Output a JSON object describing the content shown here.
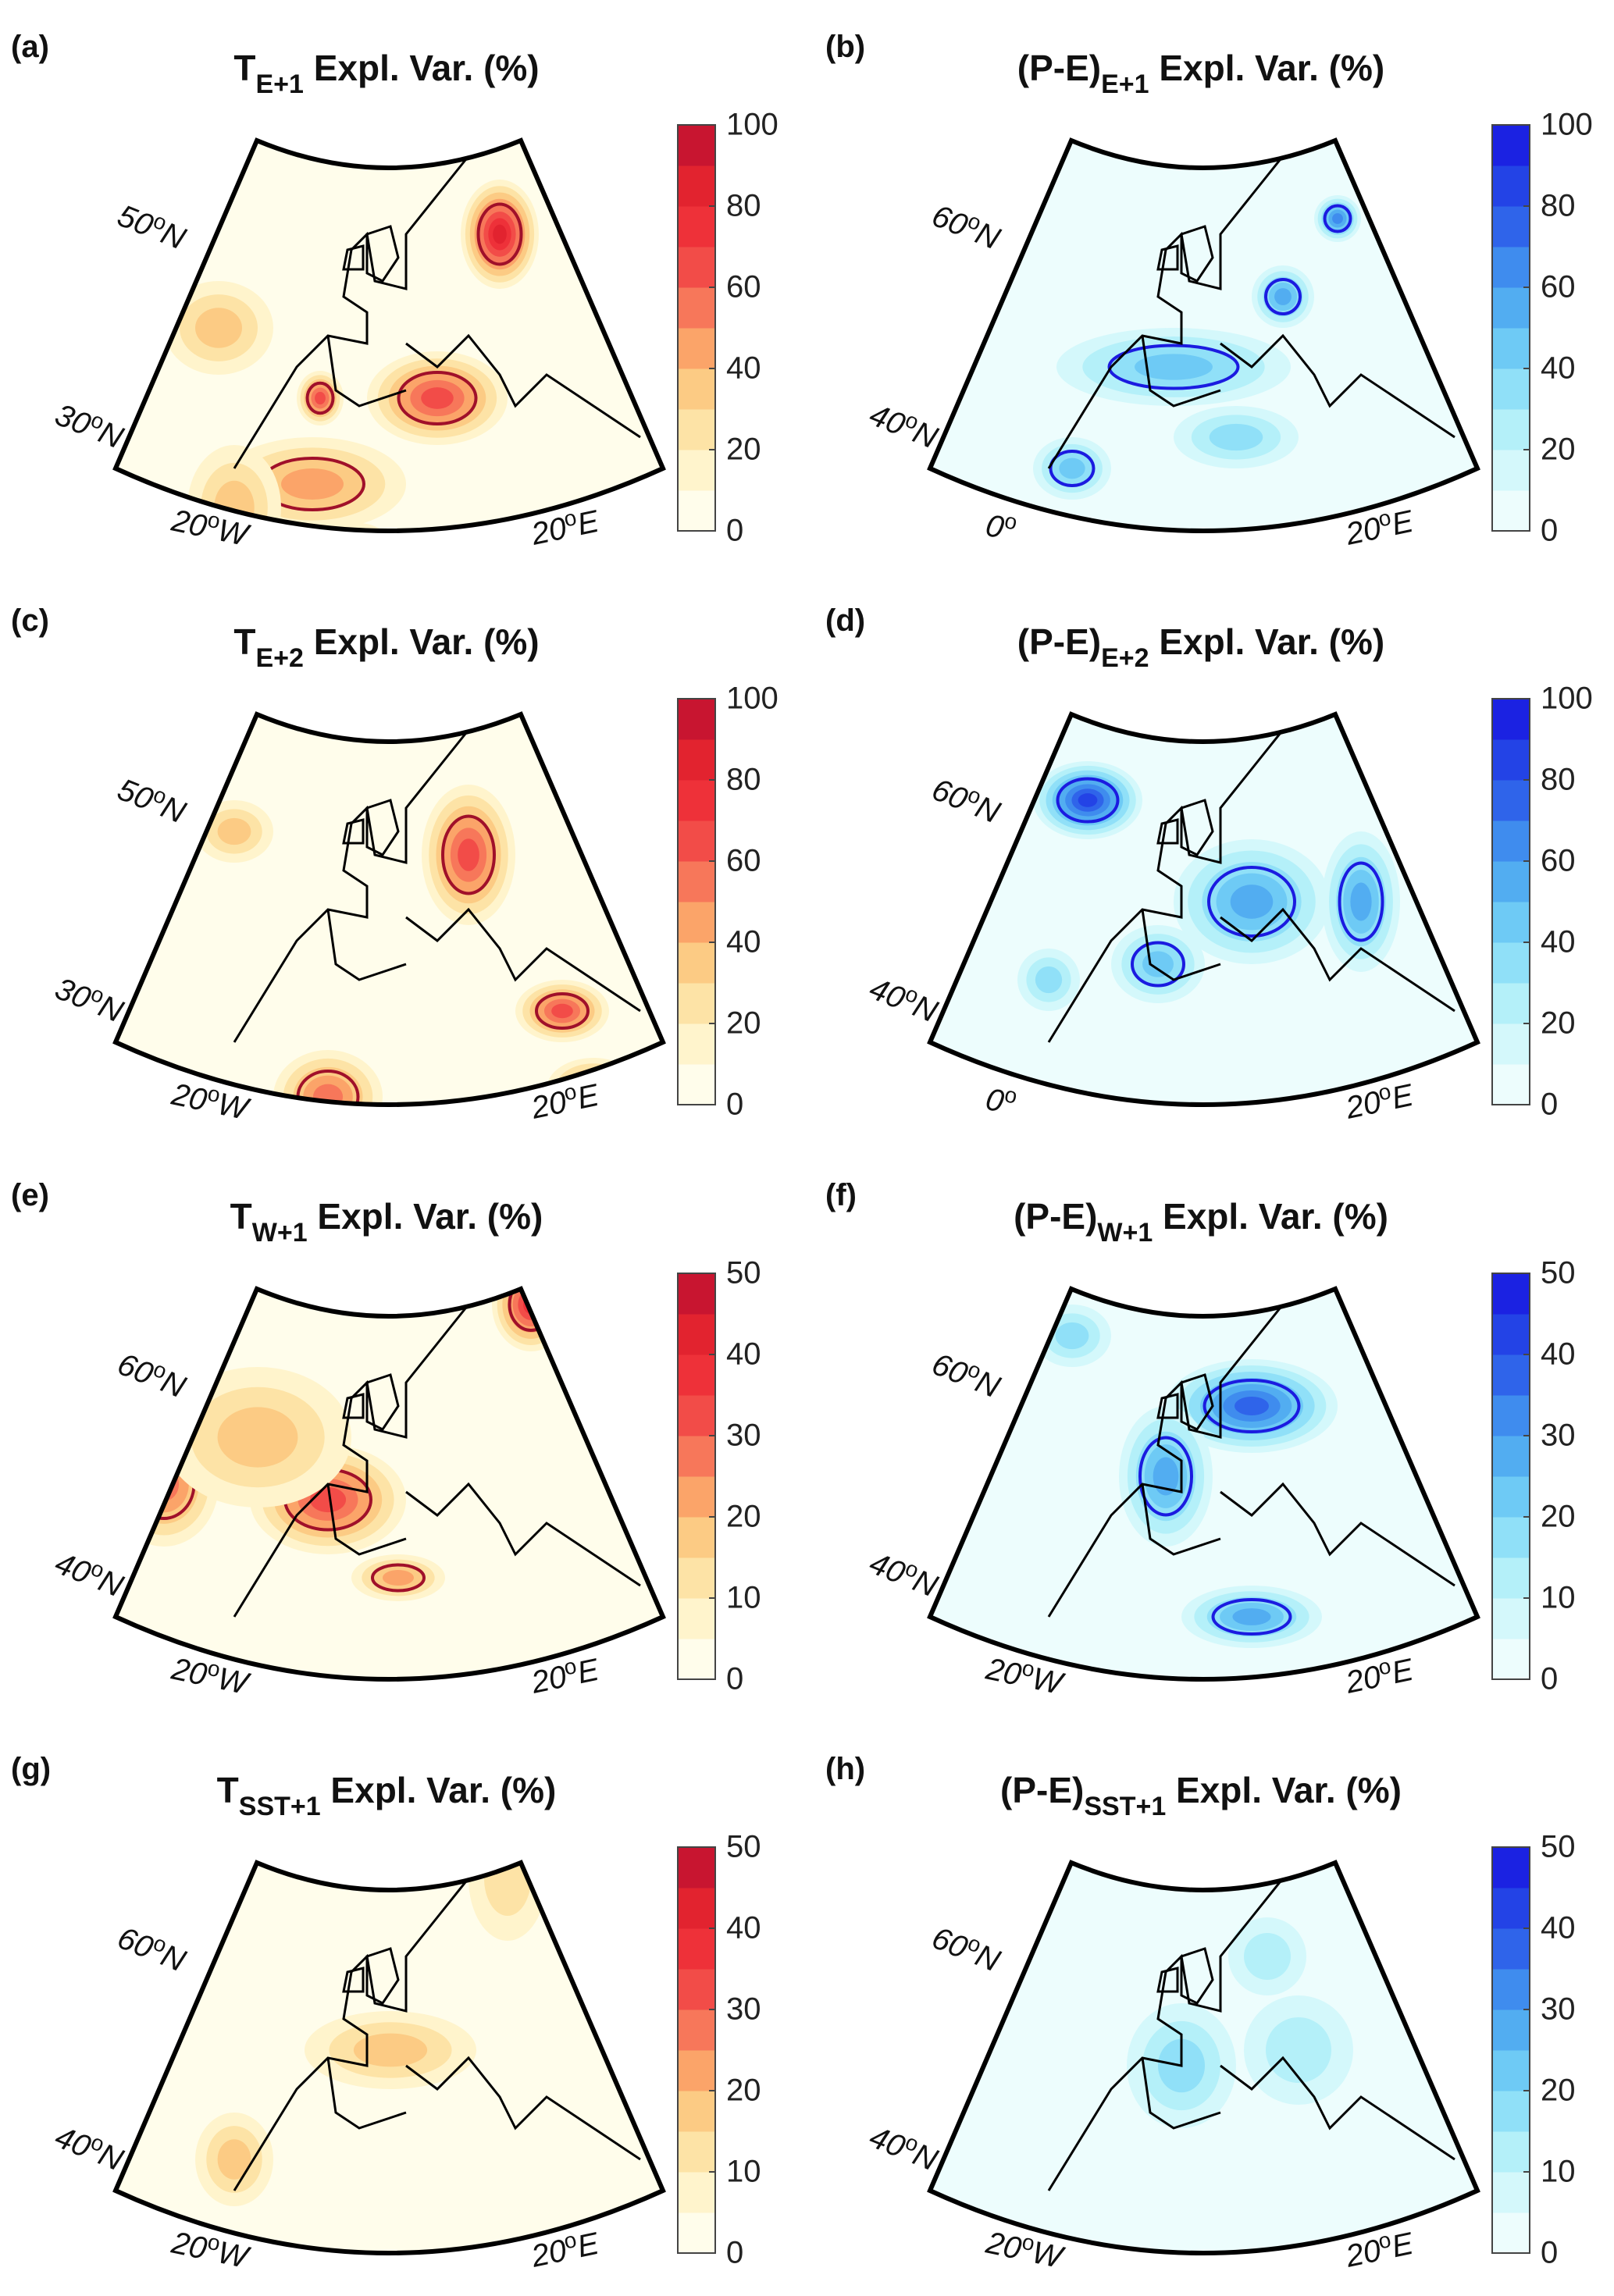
{
  "chart_data": [
    {
      "id": "a",
      "label": "(a)",
      "type": "heatmap",
      "var": "T",
      "sub": "E+1",
      "title_rest": " Expl. Var. (%)",
      "palette": "red",
      "cbar_max": 100,
      "cbar_ticks": [
        "0",
        "20",
        "40",
        "60",
        "80",
        "100"
      ],
      "lat_labels": [
        "50",
        "30"
      ],
      "lon_labels": [
        "20",
        "20"
      ],
      "lat_suffix": "N",
      "lon_suffix": [
        "W",
        "E"
      ],
      "lat_values": [
        50,
        30
      ],
      "lon_values": [
        -20,
        20
      ]
    },
    {
      "id": "b",
      "label": "(b)",
      "type": "heatmap",
      "var": "(P-E)",
      "sub": "E+1",
      "title_rest": " Expl. Var. (%)",
      "palette": "blue",
      "cbar_max": 100,
      "cbar_ticks": [
        "0",
        "20",
        "40",
        "60",
        "80",
        "100"
      ],
      "lat_labels": [
        "60",
        "40"
      ],
      "lon_labels": [
        "0",
        "20"
      ],
      "lat_suffix": "N",
      "lon_suffix": [
        "",
        "E"
      ],
      "lat_values": [
        60,
        40
      ],
      "lon_values": [
        0,
        20
      ]
    },
    {
      "id": "c",
      "label": "(c)",
      "type": "heatmap",
      "var": "T",
      "sub": "E+2",
      "title_rest": " Expl. Var. (%)",
      "palette": "red",
      "cbar_max": 100,
      "cbar_ticks": [
        "0",
        "20",
        "40",
        "60",
        "80",
        "100"
      ],
      "lat_labels": [
        "50",
        "30"
      ],
      "lon_labels": [
        "20",
        "20"
      ],
      "lat_suffix": "N",
      "lon_suffix": [
        "W",
        "E"
      ],
      "lat_values": [
        50,
        30
      ],
      "lon_values": [
        -20,
        20
      ]
    },
    {
      "id": "d",
      "label": "(d)",
      "type": "heatmap",
      "var": "(P-E)",
      "sub": "E+2",
      "title_rest": " Expl. Var. (%)",
      "palette": "blue",
      "cbar_max": 100,
      "cbar_ticks": [
        "0",
        "20",
        "40",
        "60",
        "80",
        "100"
      ],
      "lat_labels": [
        "60",
        "40"
      ],
      "lon_labels": [
        "0",
        "20"
      ],
      "lat_suffix": "N",
      "lon_suffix": [
        "",
        "E"
      ],
      "lat_values": [
        60,
        40
      ],
      "lon_values": [
        0,
        20
      ]
    },
    {
      "id": "e",
      "label": "(e)",
      "type": "heatmap",
      "var": "T",
      "sub": "W+1",
      "title_rest": " Expl. Var. (%)",
      "palette": "red",
      "cbar_max": 50,
      "cbar_ticks": [
        "0",
        "10",
        "20",
        "30",
        "40",
        "50"
      ],
      "lat_labels": [
        "60",
        "40"
      ],
      "lon_labels": [
        "20",
        "20"
      ],
      "lat_suffix": "N",
      "lon_suffix": [
        "W",
        "E"
      ],
      "lat_values": [
        60,
        40
      ],
      "lon_values": [
        -20,
        20
      ]
    },
    {
      "id": "f",
      "label": "(f)",
      "type": "heatmap",
      "var": "(P-E)",
      "sub": "W+1",
      "title_rest": " Expl. Var. (%)",
      "palette": "blue",
      "cbar_max": 50,
      "cbar_ticks": [
        "0",
        "10",
        "20",
        "30",
        "40",
        "50"
      ],
      "lat_labels": [
        "60",
        "40"
      ],
      "lon_labels": [
        "20",
        "20"
      ],
      "lat_suffix": "N",
      "lon_suffix": [
        "W",
        "E"
      ],
      "lat_values": [
        60,
        40
      ],
      "lon_values": [
        -20,
        20
      ]
    },
    {
      "id": "g",
      "label": "(g)",
      "type": "heatmap",
      "var": "T",
      "sub": "SST+1",
      "title_rest": " Expl. Var. (%)",
      "palette": "red",
      "cbar_max": 50,
      "cbar_ticks": [
        "0",
        "10",
        "20",
        "30",
        "40",
        "50"
      ],
      "lat_labels": [
        "60",
        "40"
      ],
      "lon_labels": [
        "20",
        "20"
      ],
      "lat_suffix": "N",
      "lon_suffix": [
        "W",
        "E"
      ],
      "lat_values": [
        60,
        40
      ],
      "lon_values": [
        -20,
        20
      ]
    },
    {
      "id": "h",
      "label": "(h)",
      "type": "heatmap",
      "var": "(P-E)",
      "sub": "SST+1",
      "title_rest": " Expl. Var. (%)",
      "palette": "blue",
      "cbar_max": 50,
      "cbar_ticks": [
        "0",
        "10",
        "20",
        "30",
        "40",
        "50"
      ],
      "lat_labels": [
        "60",
        "40"
      ],
      "lon_labels": [
        "20",
        "20"
      ],
      "lat_suffix": "N",
      "lon_suffix": [
        "W",
        "E"
      ],
      "lat_values": [
        60,
        40
      ],
      "lon_values": [
        -20,
        20
      ]
    }
  ],
  "colors": {
    "red": [
      "#fffdeb",
      "#fff4cc",
      "#fde3a6",
      "#fccb84",
      "#fba469",
      "#f7775a",
      "#f24c48",
      "#ee3139",
      "#e2232f",
      "#c81530"
    ],
    "blue": [
      "#edfdfd",
      "#d4f8fb",
      "#b4f0f9",
      "#90e0f8",
      "#6ecaf5",
      "#52adf1",
      "#3f8cee",
      "#2f64ea",
      "#2343e6",
      "#1b22e2"
    ],
    "red_contour": "#a0102a",
    "blue_contour": "#1b1be0",
    "coast": "#000000"
  }
}
